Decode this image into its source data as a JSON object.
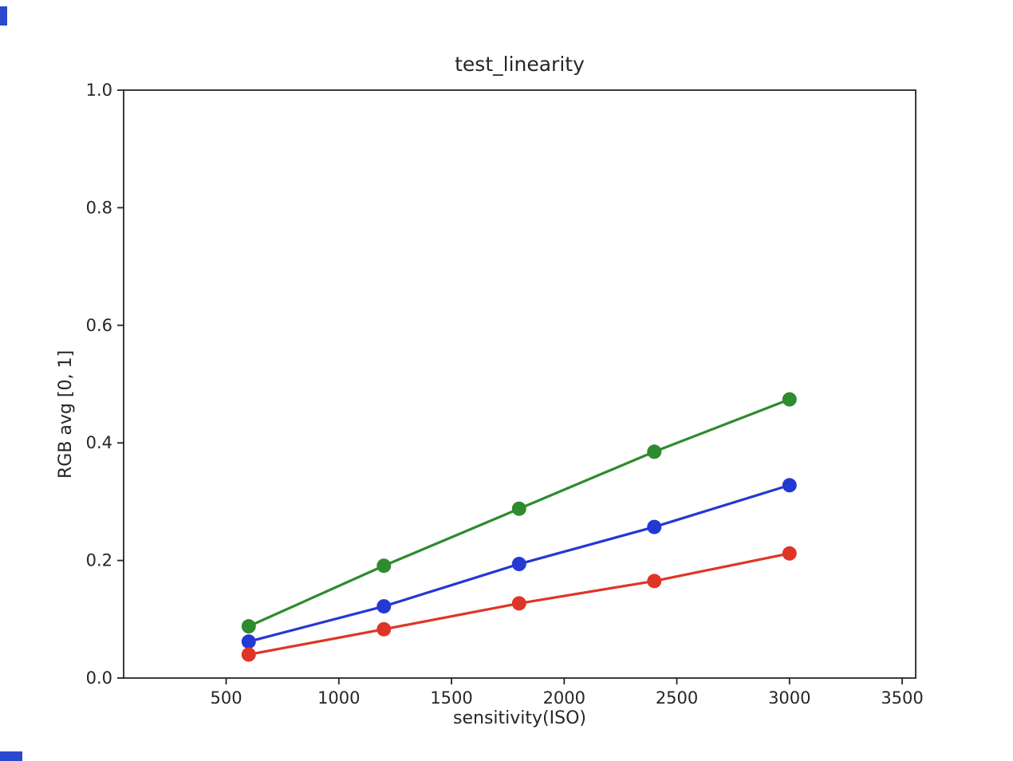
{
  "figure": {
    "title": "test_linearity",
    "xlabel": "sensitivity(ISO)",
    "ylabel": "RGB avg [0, 1]"
  },
  "chart_data": {
    "type": "line",
    "title": "test_linearity",
    "xlabel": "sensitivity(ISO)",
    "ylabel": "RGB avg [0, 1]",
    "x": [
      600,
      1200,
      1800,
      2400,
      3000
    ],
    "series": [
      {
        "name": "green",
        "color": "#2e8b2e",
        "values": [
          0.088,
          0.191,
          0.288,
          0.385,
          0.474
        ]
      },
      {
        "name": "blue",
        "color": "#2339d2",
        "values": [
          0.062,
          0.122,
          0.194,
          0.257,
          0.328
        ]
      },
      {
        "name": "red",
        "color": "#df3526",
        "values": [
          0.04,
          0.083,
          0.127,
          0.165,
          0.212
        ]
      }
    ],
    "xlim": [
      45,
      3560
    ],
    "ylim": [
      0,
      1
    ],
    "xticks": [
      500,
      1000,
      1500,
      2000,
      2500,
      3000,
      3500
    ],
    "xtick_labels": [
      "500",
      "1000",
      "1500",
      "2000",
      "2500",
      "3000",
      "3500"
    ],
    "yticks": [
      0.0,
      0.2,
      0.4,
      0.6,
      0.8,
      1.0
    ],
    "ytick_labels": [
      "0.0",
      "0.2",
      "0.4",
      "0.6",
      "0.8",
      "1.0"
    ],
    "grid": false,
    "legend": null,
    "marker": "circle",
    "marker_size": 9,
    "line_width": 3.2,
    "axis_color": "#262626"
  },
  "screen": {
    "artifact_color": "#2a49cf"
  }
}
